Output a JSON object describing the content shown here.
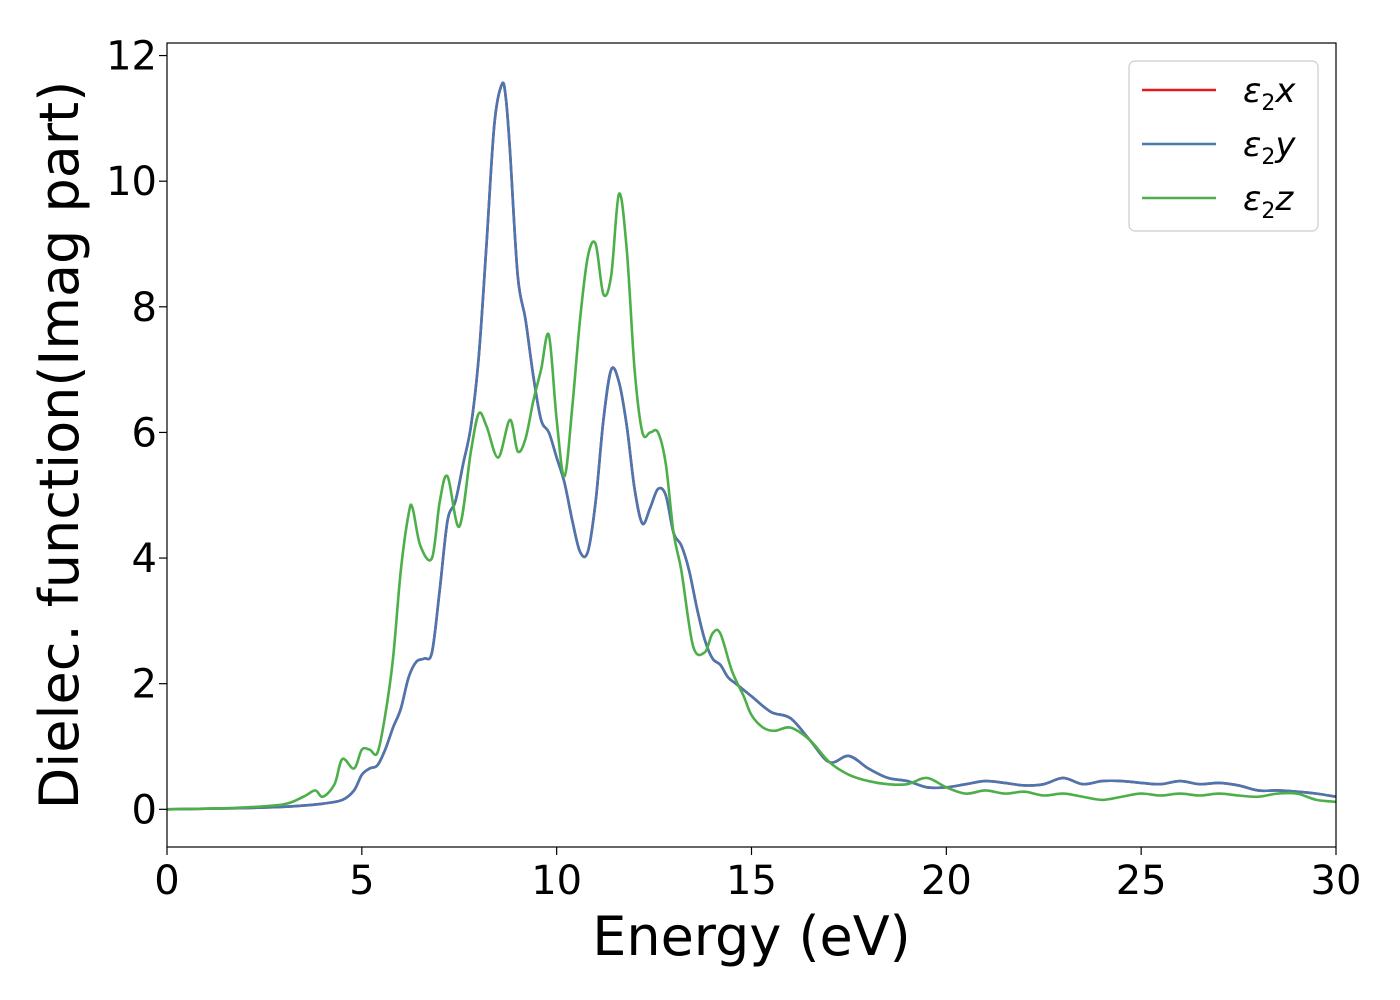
{
  "chart_data": {
    "type": "line",
    "xlabel": "Energy (eV)",
    "ylabel": "Dielec. function(Imag part)",
    "xlim": [
      0,
      30
    ],
    "ylim": [
      -0.6,
      12.2
    ],
    "xticks": [
      0,
      5,
      10,
      15,
      20,
      25,
      30
    ],
    "yticks": [
      0,
      2,
      4,
      6,
      8,
      10,
      12
    ],
    "grid": false,
    "legend_position": "top-right",
    "series": [
      {
        "name": "ε2x",
        "legend_main": "ε",
        "legend_sub": "2",
        "legend_tail": "x",
        "color": "#e41a1c",
        "x": [
          0,
          1,
          2,
          3,
          3.5,
          4,
          4.5,
          4.8,
          5.0,
          5.2,
          5.4,
          5.6,
          5.8,
          6.0,
          6.2,
          6.4,
          6.6,
          6.8,
          7.0,
          7.2,
          7.4,
          7.6,
          7.8,
          8.0,
          8.2,
          8.4,
          8.6,
          8.7,
          8.8,
          9.0,
          9.2,
          9.4,
          9.6,
          9.8,
          10.0,
          10.2,
          10.4,
          10.6,
          10.8,
          11.0,
          11.2,
          11.4,
          11.6,
          11.8,
          12.0,
          12.2,
          12.4,
          12.6,
          12.8,
          13.0,
          13.2,
          13.4,
          13.6,
          13.8,
          14.0,
          14.2,
          14.4,
          14.6,
          14.8,
          15.0,
          15.5,
          16.0,
          16.5,
          17.0,
          17.5,
          18.0,
          18.5,
          19.0,
          19.5,
          20.0,
          20.5,
          21.0,
          21.5,
          22.0,
          22.5,
          23.0,
          23.5,
          24.0,
          24.5,
          25.0,
          25.5,
          26.0,
          26.5,
          27.0,
          27.5,
          28.0,
          28.5,
          29.0,
          29.5,
          30.0
        ],
        "y": [
          0.0,
          0.01,
          0.02,
          0.04,
          0.06,
          0.09,
          0.15,
          0.3,
          0.55,
          0.65,
          0.7,
          0.95,
          1.3,
          1.6,
          2.1,
          2.35,
          2.4,
          2.5,
          3.5,
          4.6,
          4.9,
          5.5,
          6.1,
          7.2,
          9.0,
          10.9,
          11.55,
          11.3,
          10.5,
          8.5,
          7.8,
          6.9,
          6.2,
          6.0,
          5.6,
          5.2,
          4.6,
          4.1,
          4.1,
          4.9,
          6.2,
          7.0,
          6.8,
          6.1,
          5.1,
          4.55,
          4.8,
          5.1,
          5.0,
          4.4,
          4.2,
          3.8,
          3.2,
          2.7,
          2.4,
          2.3,
          2.1,
          2.0,
          1.9,
          1.8,
          1.55,
          1.45,
          1.1,
          0.75,
          0.85,
          0.65,
          0.5,
          0.45,
          0.35,
          0.35,
          0.4,
          0.45,
          0.42,
          0.38,
          0.4,
          0.5,
          0.4,
          0.45,
          0.45,
          0.42,
          0.4,
          0.45,
          0.4,
          0.42,
          0.38,
          0.3,
          0.3,
          0.28,
          0.25,
          0.2
        ]
      },
      {
        "name": "ε2y",
        "legend_main": "ε",
        "legend_sub": "2",
        "legend_tail": "y",
        "color": "#4a77b0",
        "x": [
          0,
          1,
          2,
          3,
          3.5,
          4,
          4.5,
          4.8,
          5.0,
          5.2,
          5.4,
          5.6,
          5.8,
          6.0,
          6.2,
          6.4,
          6.6,
          6.8,
          7.0,
          7.2,
          7.4,
          7.6,
          7.8,
          8.0,
          8.2,
          8.4,
          8.6,
          8.7,
          8.8,
          9.0,
          9.2,
          9.4,
          9.6,
          9.8,
          10.0,
          10.2,
          10.4,
          10.6,
          10.8,
          11.0,
          11.2,
          11.4,
          11.6,
          11.8,
          12.0,
          12.2,
          12.4,
          12.6,
          12.8,
          13.0,
          13.2,
          13.4,
          13.6,
          13.8,
          14.0,
          14.2,
          14.4,
          14.6,
          14.8,
          15.0,
          15.5,
          16.0,
          16.5,
          17.0,
          17.5,
          18.0,
          18.5,
          19.0,
          19.5,
          20.0,
          20.5,
          21.0,
          21.5,
          22.0,
          22.5,
          23.0,
          23.5,
          24.0,
          24.5,
          25.0,
          25.5,
          26.0,
          26.5,
          27.0,
          27.5,
          28.0,
          28.5,
          29.0,
          29.5,
          30.0
        ],
        "y": [
          0.0,
          0.01,
          0.02,
          0.04,
          0.06,
          0.09,
          0.15,
          0.3,
          0.55,
          0.65,
          0.7,
          0.95,
          1.3,
          1.6,
          2.1,
          2.35,
          2.4,
          2.5,
          3.5,
          4.6,
          4.9,
          5.5,
          6.1,
          7.2,
          9.0,
          10.9,
          11.55,
          11.3,
          10.5,
          8.5,
          7.8,
          6.9,
          6.2,
          6.0,
          5.6,
          5.2,
          4.6,
          4.1,
          4.1,
          4.9,
          6.2,
          7.0,
          6.8,
          6.1,
          5.1,
          4.55,
          4.8,
          5.1,
          5.0,
          4.4,
          4.2,
          3.8,
          3.2,
          2.7,
          2.4,
          2.3,
          2.1,
          2.0,
          1.9,
          1.8,
          1.55,
          1.45,
          1.1,
          0.75,
          0.85,
          0.65,
          0.5,
          0.45,
          0.35,
          0.35,
          0.4,
          0.45,
          0.42,
          0.38,
          0.4,
          0.5,
          0.4,
          0.45,
          0.45,
          0.42,
          0.4,
          0.45,
          0.4,
          0.42,
          0.38,
          0.3,
          0.3,
          0.28,
          0.25,
          0.2
        ]
      },
      {
        "name": "ε2z",
        "legend_main": "ε",
        "legend_sub": "2",
        "legend_tail": "z",
        "color": "#4daf4a",
        "x": [
          0,
          1,
          2,
          3,
          3.5,
          3.8,
          4.0,
          4.3,
          4.5,
          4.8,
          5.0,
          5.2,
          5.4,
          5.6,
          5.8,
          6.0,
          6.2,
          6.3,
          6.5,
          6.8,
          7.0,
          7.2,
          7.5,
          7.8,
          8.0,
          8.2,
          8.5,
          8.8,
          9.0,
          9.2,
          9.4,
          9.6,
          9.8,
          10.0,
          10.2,
          10.4,
          10.6,
          10.8,
          11.0,
          11.2,
          11.4,
          11.6,
          11.8,
          12.0,
          12.2,
          12.4,
          12.6,
          12.8,
          13.0,
          13.2,
          13.5,
          13.8,
          14.0,
          14.2,
          14.5,
          14.8,
          15.0,
          15.3,
          15.6,
          16.0,
          16.5,
          17.0,
          17.5,
          18.0,
          18.5,
          19.0,
          19.5,
          20.0,
          20.5,
          21.0,
          21.5,
          22.0,
          22.5,
          23.0,
          23.5,
          24.0,
          24.5,
          25.0,
          25.5,
          26.0,
          26.5,
          27.0,
          27.5,
          28.0,
          28.5,
          29.0,
          29.5,
          30.0
        ],
        "y": [
          0.0,
          0.01,
          0.03,
          0.08,
          0.2,
          0.3,
          0.2,
          0.4,
          0.8,
          0.65,
          0.95,
          0.95,
          0.9,
          1.5,
          2.4,
          3.8,
          4.7,
          4.8,
          4.2,
          4.0,
          4.9,
          5.3,
          4.5,
          5.7,
          6.3,
          6.1,
          5.6,
          6.2,
          5.7,
          5.9,
          6.5,
          7.0,
          7.55,
          6.2,
          5.3,
          6.4,
          7.8,
          8.8,
          9.0,
          8.2,
          8.5,
          9.8,
          8.9,
          7.0,
          6.0,
          6.0,
          6.0,
          5.5,
          4.4,
          3.8,
          2.6,
          2.5,
          2.8,
          2.8,
          2.2,
          1.8,
          1.5,
          1.3,
          1.25,
          1.3,
          1.1,
          0.75,
          0.55,
          0.45,
          0.4,
          0.4,
          0.5,
          0.35,
          0.25,
          0.3,
          0.25,
          0.28,
          0.22,
          0.25,
          0.2,
          0.15,
          0.2,
          0.25,
          0.22,
          0.25,
          0.22,
          0.25,
          0.22,
          0.2,
          0.25,
          0.25,
          0.15,
          0.12
        ]
      }
    ]
  }
}
